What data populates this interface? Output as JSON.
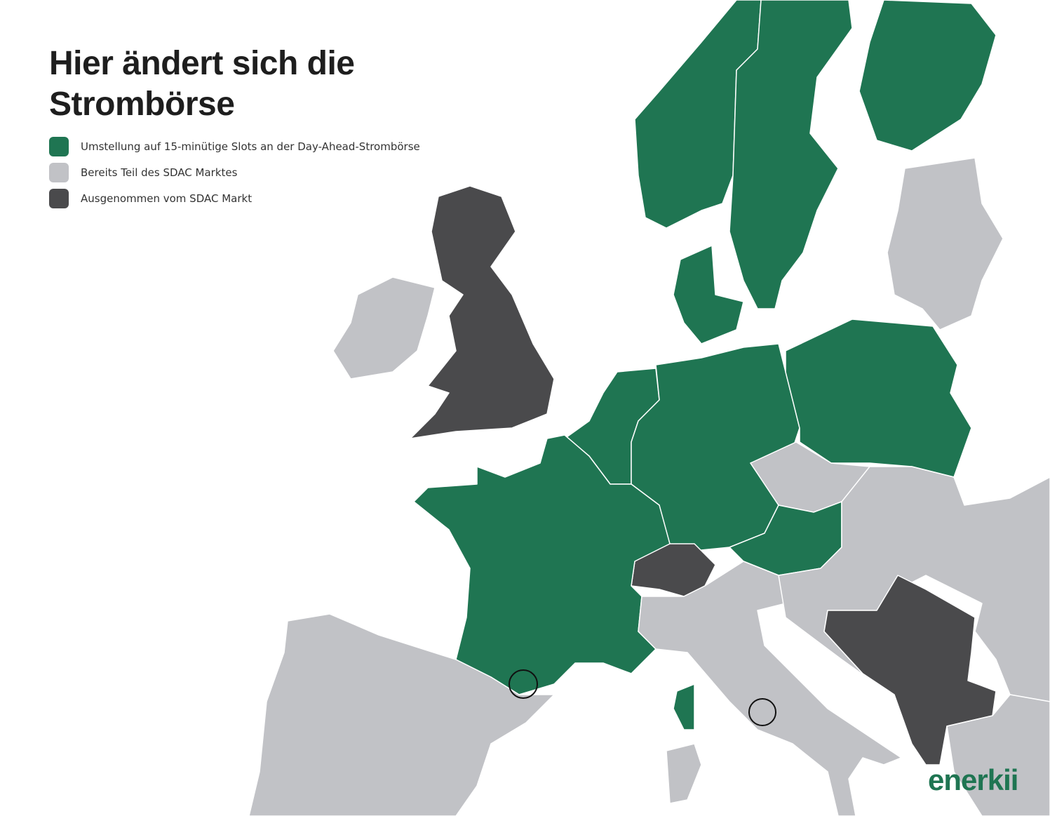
{
  "header": {
    "title_lines": [
      "Hier ändert sich die",
      "Strombörse"
    ]
  },
  "legend": {
    "items": [
      {
        "label": "Umstellung auf 15-minütige Slots an der Day-Ahead-Strombörse",
        "color": "#1f7552"
      },
      {
        "label": "Bereits Teil des SDAC Marktes",
        "color": "#c1c2c6"
      },
      {
        "label": "Ausgenommen vom SDAC Markt",
        "color": "#4a4a4c"
      }
    ]
  },
  "brand": "enerkii"
}
